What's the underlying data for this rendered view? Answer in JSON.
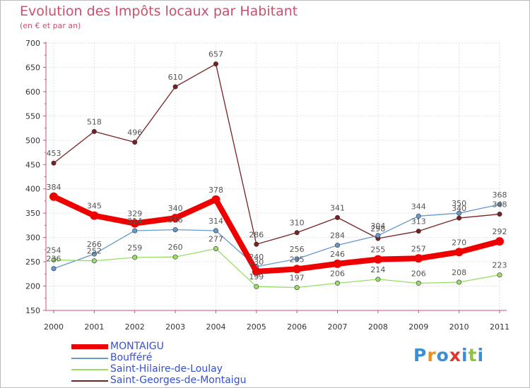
{
  "chart_data": {
    "type": "line",
    "title": "Evolution des Impôts locaux par Habitant",
    "subtitle": "(en € et par an)",
    "xlabel": "",
    "ylabel": "",
    "x": [
      "2000",
      "2001",
      "2002",
      "2003",
      "2004",
      "2005",
      "2006",
      "2007",
      "2008",
      "2009",
      "2010",
      "2011"
    ],
    "ylim": [
      150,
      700
    ],
    "yticks": [
      150,
      200,
      250,
      300,
      350,
      400,
      450,
      500,
      550,
      600,
      650,
      700
    ],
    "grid": true,
    "series": [
      {
        "name": "MONTAIGU",
        "color": "#ee0000",
        "values": [
          384,
          345,
          329,
          340,
          378,
          230,
          235,
          246,
          255,
          257,
          270,
          292
        ]
      },
      {
        "name": "Boufféré",
        "color": "#6699cc",
        "values": [
          236,
          266,
          314,
          316,
          314,
          240,
          256,
          284,
          304,
          344,
          350,
          368
        ]
      },
      {
        "name": "Saint-Hilaire-de-Loulay",
        "color": "#99dd66",
        "values": [
          254,
          252,
          259,
          260,
          277,
          199,
          197,
          206,
          214,
          206,
          208,
          223
        ]
      },
      {
        "name": "Saint-Georges-de-Montaigu",
        "color": "#772222",
        "values": [
          453,
          518,
          496,
          610,
          657,
          286,
          310,
          341,
          298,
          313,
          340,
          348
        ]
      }
    ],
    "value_labels": [
      [
        "384",
        "345",
        "329",
        "340",
        "378",
        "230",
        "235",
        "246",
        "255",
        "257",
        "270",
        "292"
      ],
      [
        "236",
        "266",
        "314",
        "316",
        "314",
        "240",
        "256",
        "284",
        "304",
        "344",
        "350",
        "368"
      ],
      [
        "254",
        "252",
        "259",
        "260",
        "277",
        "199",
        "197",
        "206",
        "214",
        "206",
        "208",
        "223"
      ],
      [
        "453",
        "518",
        "496",
        "610",
        "657",
        "286",
        "310",
        "341",
        "298",
        "313",
        "340",
        "348"
      ]
    ]
  },
  "logo": {
    "letters": [
      "P",
      "r",
      "o",
      "x",
      "i",
      "t",
      "i"
    ],
    "colors": [
      "#3a8fd6",
      "#f28c1e",
      "#3a8fd6",
      "#e0362c",
      "#3a8fd6",
      "#8cc43c",
      "#3a8fd6"
    ]
  }
}
